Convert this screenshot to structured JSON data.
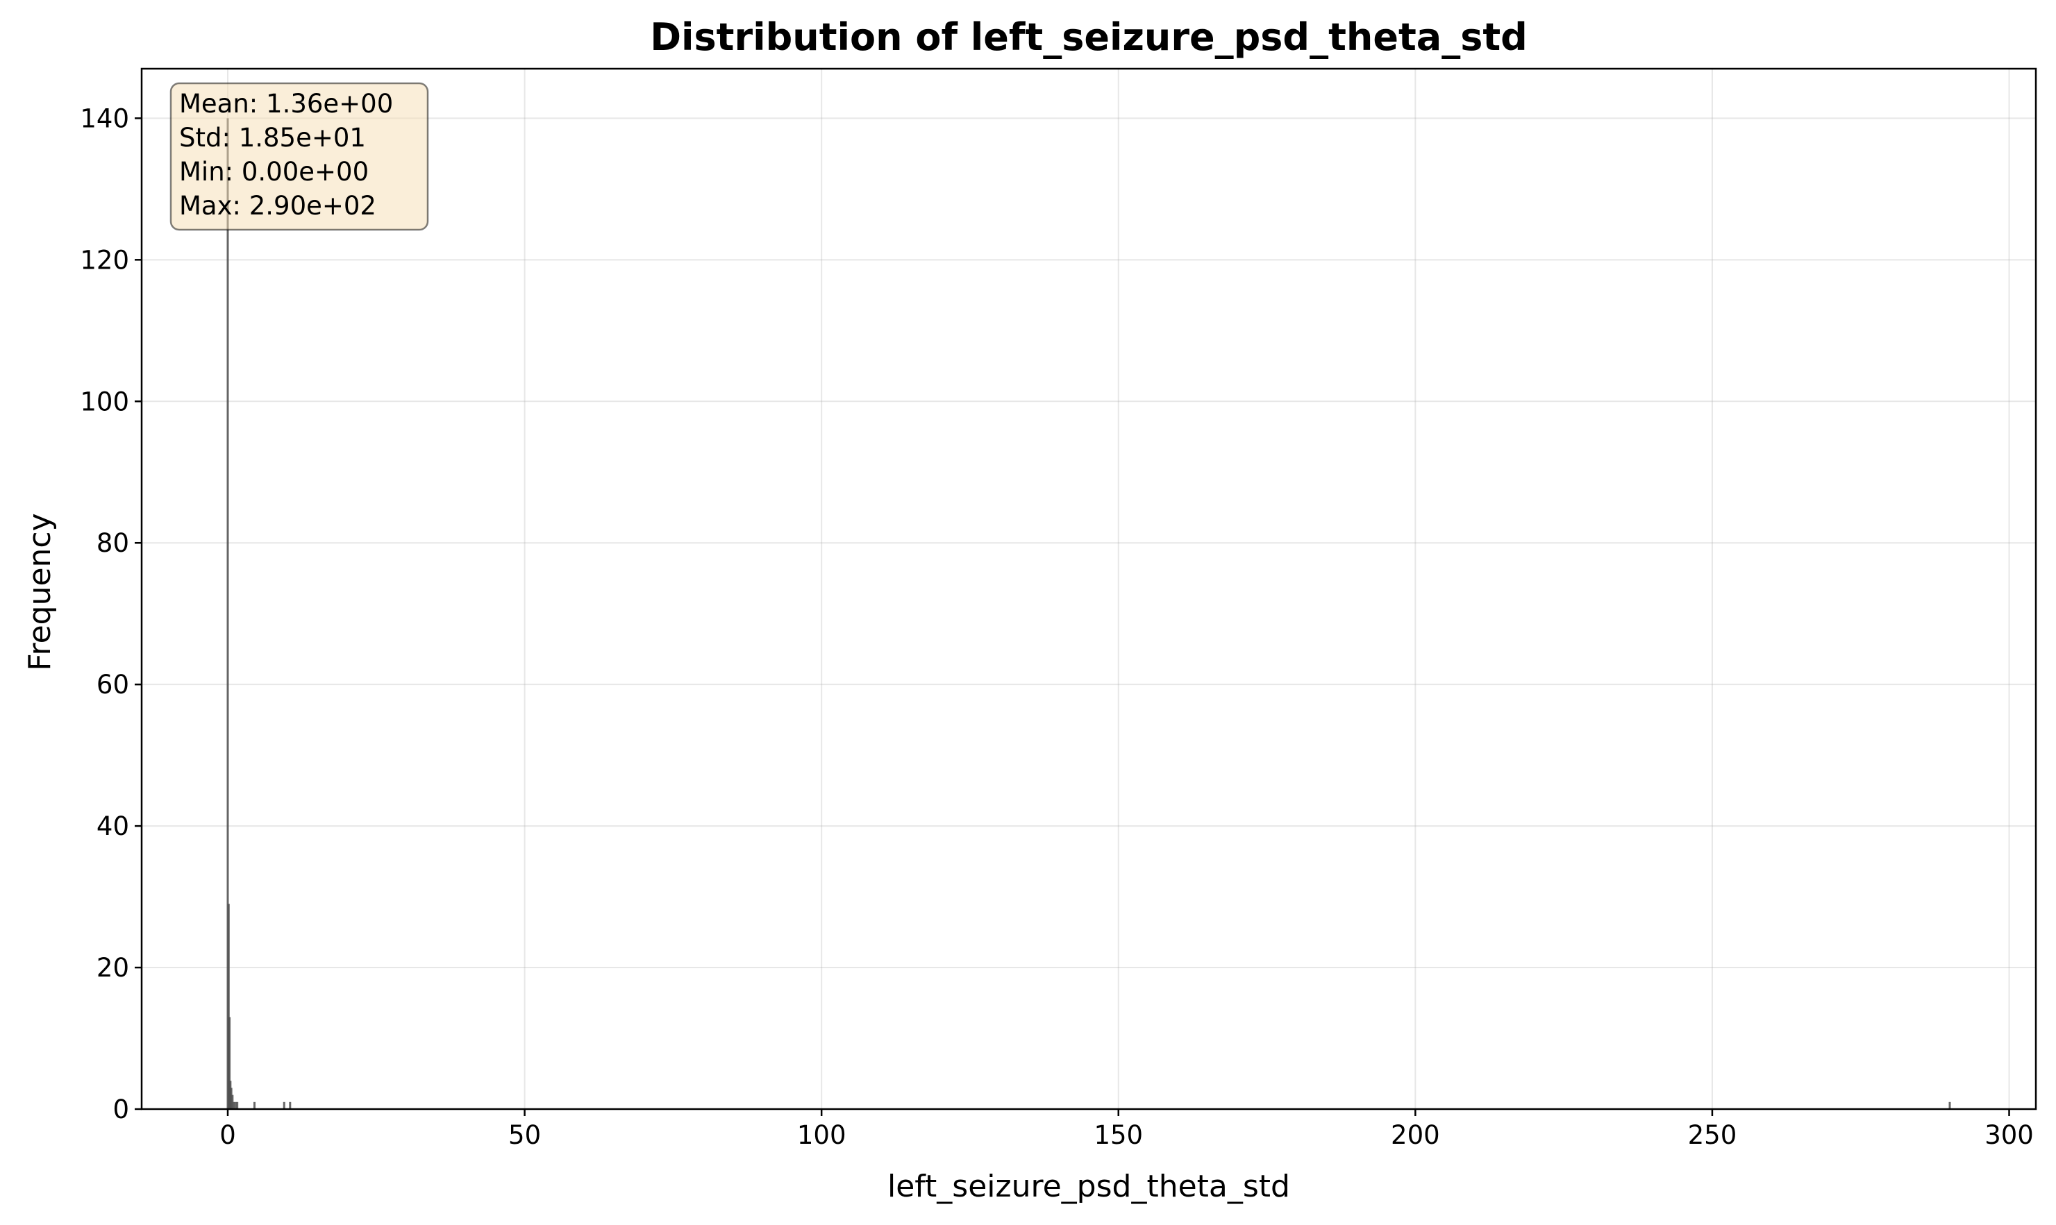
{
  "chart_data": {
    "type": "bar",
    "title": "Distribution of left_seizure_psd_theta_std",
    "xlabel": "left_seizure_psd_theta_std",
    "ylabel": "Frequency",
    "xlim": [
      -14.5,
      304.5
    ],
    "ylim": [
      0,
      147
    ],
    "xticks": [
      0,
      50,
      100,
      150,
      200,
      250,
      300
    ],
    "yticks": [
      0,
      20,
      40,
      60,
      80,
      100,
      120,
      140
    ],
    "grid": true,
    "bar_color": "#4d4d4d",
    "bins": [
      {
        "x": 0.0,
        "count": 140
      },
      {
        "x": 0.15,
        "count": 29
      },
      {
        "x": 0.3,
        "count": 13
      },
      {
        "x": 0.45,
        "count": 4
      },
      {
        "x": 0.6,
        "count": 3
      },
      {
        "x": 0.8,
        "count": 2
      },
      {
        "x": 1.0,
        "count": 1
      },
      {
        "x": 1.3,
        "count": 1
      },
      {
        "x": 1.6,
        "count": 1
      },
      {
        "x": 4.5,
        "count": 1
      },
      {
        "x": 9.5,
        "count": 1
      },
      {
        "x": 10.5,
        "count": 1
      },
      {
        "x": 290.0,
        "count": 1
      }
    ],
    "stats_box": {
      "lines": [
        "Mean: 1.36e+00",
        "Std: 1.85e+01",
        "Min: 0.00e+00",
        "Max: 2.90e+02"
      ],
      "fill": "#f5deb3",
      "placement": "top-left"
    }
  }
}
